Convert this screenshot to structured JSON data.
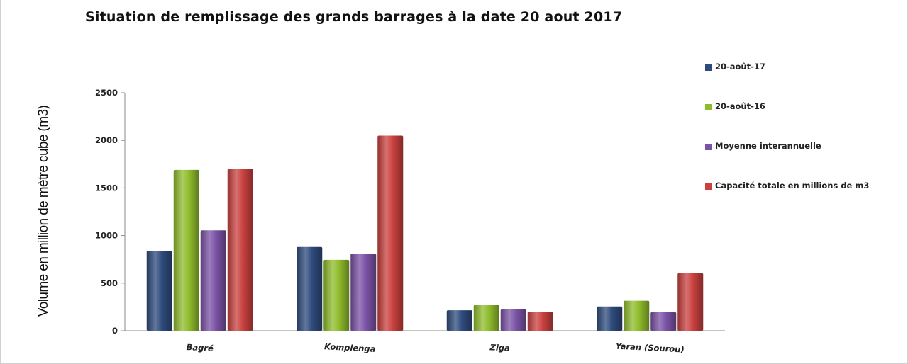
{
  "chart_data": {
    "type": "bar",
    "title": "Situation de remplissage des grands barrages à la date 20 aout  2017",
    "xlabel": "",
    "ylabel": "Volume en million de mètre cube (m3)",
    "categories": [
      "Bagré",
      "Kompienga",
      "Ziga",
      "Yaran (Sourou)"
    ],
    "ylim": [
      0,
      2500
    ],
    "yticks": [
      0,
      500,
      1000,
      1500,
      2000,
      2500
    ],
    "grid": false,
    "legend_position": "right",
    "series": [
      {
        "name": "20-août-17",
        "values": [
          840,
          880,
          215,
          255
        ],
        "color": "#2e4b7c"
      },
      {
        "name": "20-août-16",
        "values": [
          1690,
          745,
          270,
          315
        ],
        "color": "#8fbc2c"
      },
      {
        "name": "Moyenne interannuelle",
        "values": [
          1055,
          810,
          225,
          195
        ],
        "color": "#7b53a6"
      },
      {
        "name": "Capacité totale en millions de m3",
        "values": [
          1700,
          2050,
          200,
          605
        ],
        "color": "#c9413f"
      }
    ]
  }
}
